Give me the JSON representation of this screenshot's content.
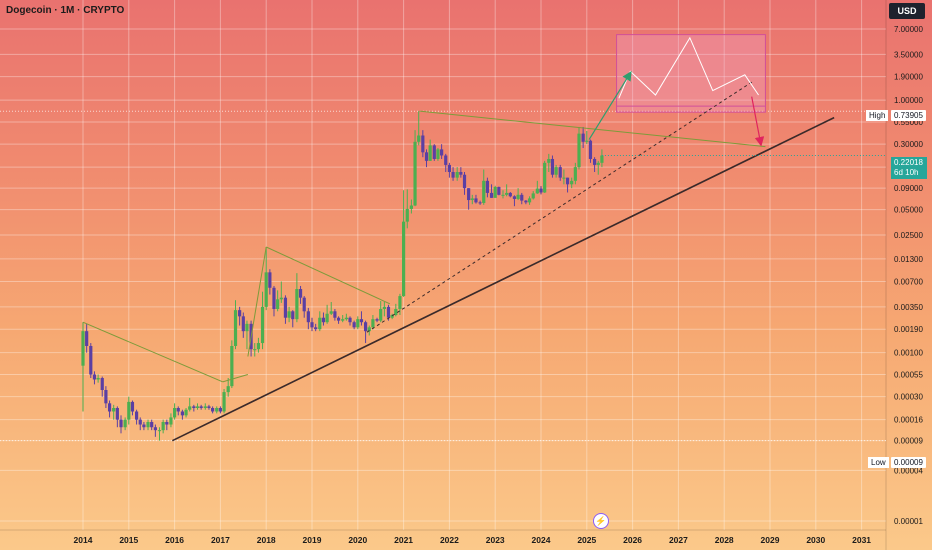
{
  "header": {
    "title": "Dogecoin · 1M · CRYPTO",
    "currency": "USD"
  },
  "price_tags": {
    "high_label": "High",
    "high_value": "0.73905",
    "low_label": "Low",
    "low_value": "0.00009",
    "current_value": "0.22018",
    "countdown": "6d 10h"
  },
  "colors": {
    "up": "#4caf50",
    "down": "#5b3fa3",
    "trendline": "#3b2a2a",
    "triangle": "#7d9b3a",
    "forecast_box": "#d14f9a",
    "forecast_arrow": "#2e9e6e",
    "down_arrow": "#e0245e"
  },
  "chart_data": {
    "type": "candlestick",
    "scale": "log",
    "y_ticks": [
      "7.00000",
      "3.50000",
      "1.90000",
      "1.00000",
      "0.55000",
      "0.30000",
      "0.16000",
      "0.09000",
      "0.05000",
      "0.02500",
      "0.01300",
      "0.00700",
      "0.00350",
      "0.00190",
      "0.00100",
      "0.00055",
      "0.00030",
      "0.00016",
      "0.00009",
      "0.00004",
      "0.00001"
    ],
    "x_ticks": [
      "2014",
      "2015",
      "2016",
      "2017",
      "2018",
      "2019",
      "2020",
      "2021",
      "2022",
      "2023",
      "2024",
      "2025",
      "2026",
      "2027",
      "2028",
      "2029",
      "2030",
      "2031"
    ],
    "high": 0.73905,
    "low": 9e-05,
    "last": 0.22018,
    "candles": [
      [
        2014.0,
        0.0007,
        0.0018,
        0.0023,
        0.0002
      ],
      [
        2014.08,
        0.0018,
        0.0012,
        0.0022,
        0.001
      ],
      [
        2014.17,
        0.0012,
        0.00055,
        0.0013,
        0.0005
      ],
      [
        2014.25,
        0.00055,
        0.00048,
        0.0006,
        0.00042
      ],
      [
        2014.33,
        0.00048,
        0.0005,
        0.00055,
        0.00044
      ],
      [
        2014.42,
        0.0005,
        0.00036,
        0.00052,
        0.0003
      ],
      [
        2014.5,
        0.00036,
        0.00025,
        0.0004,
        0.00022
      ],
      [
        2014.58,
        0.00025,
        0.0002,
        0.00027,
        0.00017
      ],
      [
        2014.67,
        0.0002,
        0.00022,
        0.00024,
        0.00016
      ],
      [
        2014.75,
        0.00022,
        0.00016,
        0.00023,
        0.00013
      ],
      [
        2014.83,
        0.00016,
        0.00013,
        0.00018,
        0.00011
      ],
      [
        2014.92,
        0.00013,
        0.00016,
        0.00017,
        0.00012
      ],
      [
        2015.0,
        0.00016,
        0.00026,
        0.0003,
        0.00014
      ],
      [
        2015.08,
        0.00026,
        0.0002,
        0.00027,
        0.00018
      ],
      [
        2015.17,
        0.0002,
        0.00016,
        0.00021,
        0.00014
      ],
      [
        2015.25,
        0.00016,
        0.00014,
        0.00017,
        0.00012
      ],
      [
        2015.33,
        0.00014,
        0.00013,
        0.00015,
        0.00012
      ],
      [
        2015.42,
        0.00013,
        0.00015,
        0.00016,
        0.00012
      ],
      [
        2015.5,
        0.00015,
        0.00013,
        0.00016,
        0.00012
      ],
      [
        2015.58,
        0.00013,
        0.00012,
        0.00014,
        0.0001
      ],
      [
        2015.67,
        0.00012,
        0.00012,
        0.00013,
        9e-05
      ],
      [
        2015.75,
        0.00012,
        0.00015,
        0.00016,
        0.00011
      ],
      [
        2015.83,
        0.00015,
        0.00014,
        0.00016,
        0.00012
      ],
      [
        2015.92,
        0.00014,
        0.00017,
        0.00019,
        0.00013
      ],
      [
        2016.0,
        0.00017,
        0.00022,
        0.00025,
        0.00016
      ],
      [
        2016.08,
        0.00022,
        0.0002,
        0.00023,
        0.00018
      ],
      [
        2016.17,
        0.0002,
        0.00018,
        0.00021,
        0.00016
      ],
      [
        2016.25,
        0.00018,
        0.00021,
        0.00022,
        0.00017
      ],
      [
        2016.33,
        0.00021,
        0.00023,
        0.00029,
        0.0002
      ],
      [
        2016.42,
        0.00023,
        0.00022,
        0.00024,
        0.0002
      ],
      [
        2016.5,
        0.00022,
        0.00023,
        0.00025,
        0.00021
      ],
      [
        2016.58,
        0.00023,
        0.00022,
        0.00024,
        0.00021
      ],
      [
        2016.67,
        0.00022,
        0.00023,
        0.00025,
        0.00021
      ],
      [
        2016.75,
        0.00023,
        0.00022,
        0.00024,
        0.00021
      ],
      [
        2016.83,
        0.00022,
        0.0002,
        0.00023,
        0.00019
      ],
      [
        2016.92,
        0.0002,
        0.00022,
        0.00023,
        0.00019
      ],
      [
        2017.0,
        0.00022,
        0.0002,
        0.00023,
        0.00019
      ],
      [
        2017.08,
        0.0002,
        0.00034,
        0.00037,
        0.00019
      ],
      [
        2017.17,
        0.00034,
        0.0004,
        0.0005,
        0.0003
      ],
      [
        2017.25,
        0.0004,
        0.0012,
        0.0014,
        0.00038
      ],
      [
        2017.33,
        0.0012,
        0.0032,
        0.0042,
        0.0011
      ],
      [
        2017.42,
        0.0032,
        0.0027,
        0.0035,
        0.0021
      ],
      [
        2017.5,
        0.0027,
        0.0018,
        0.003,
        0.0015
      ],
      [
        2017.58,
        0.0018,
        0.0022,
        0.0024,
        0.0011
      ],
      [
        2017.67,
        0.0022,
        0.0011,
        0.0024,
        0.0009
      ],
      [
        2017.75,
        0.0011,
        0.0011,
        0.0013,
        0.0009
      ],
      [
        2017.83,
        0.0011,
        0.0013,
        0.0015,
        0.001
      ],
      [
        2017.92,
        0.0013,
        0.0035,
        0.0053,
        0.0011
      ],
      [
        2018.0,
        0.0035,
        0.009,
        0.018,
        0.0032
      ],
      [
        2018.08,
        0.009,
        0.0059,
        0.0098,
        0.0049
      ],
      [
        2018.17,
        0.0059,
        0.0033,
        0.0062,
        0.0027
      ],
      [
        2018.25,
        0.0033,
        0.0043,
        0.0055,
        0.0031
      ],
      [
        2018.33,
        0.0043,
        0.0045,
        0.007,
        0.0039
      ],
      [
        2018.42,
        0.0045,
        0.0026,
        0.0048,
        0.0022
      ],
      [
        2018.5,
        0.0026,
        0.0031,
        0.0035,
        0.0023
      ],
      [
        2018.58,
        0.0031,
        0.0025,
        0.0032,
        0.002
      ],
      [
        2018.67,
        0.0025,
        0.0057,
        0.0088,
        0.0023
      ],
      [
        2018.75,
        0.0057,
        0.0045,
        0.0062,
        0.0038
      ],
      [
        2018.83,
        0.0045,
        0.0031,
        0.0047,
        0.0026
      ],
      [
        2018.92,
        0.0031,
        0.0023,
        0.0034,
        0.0019
      ],
      [
        2019.0,
        0.0023,
        0.002,
        0.0026,
        0.0018
      ],
      [
        2019.08,
        0.002,
        0.0019,
        0.0022,
        0.0018
      ],
      [
        2019.17,
        0.0019,
        0.0026,
        0.0031,
        0.0018
      ],
      [
        2019.25,
        0.0026,
        0.0023,
        0.003,
        0.0021
      ],
      [
        2019.33,
        0.0023,
        0.0029,
        0.0037,
        0.0022
      ],
      [
        2019.42,
        0.0029,
        0.0031,
        0.004,
        0.0028
      ],
      [
        2019.5,
        0.0031,
        0.0026,
        0.0033,
        0.0024
      ],
      [
        2019.58,
        0.0026,
        0.0024,
        0.0027,
        0.0022
      ],
      [
        2019.67,
        0.0024,
        0.0025,
        0.0028,
        0.0023
      ],
      [
        2019.75,
        0.0025,
        0.0026,
        0.0029,
        0.0024
      ],
      [
        2019.83,
        0.0026,
        0.0023,
        0.0027,
        0.0021
      ],
      [
        2019.92,
        0.0023,
        0.002,
        0.0024,
        0.0019
      ],
      [
        2020.0,
        0.002,
        0.0025,
        0.0027,
        0.0019
      ],
      [
        2020.08,
        0.0025,
        0.0023,
        0.0031,
        0.0021
      ],
      [
        2020.17,
        0.0023,
        0.0018,
        0.0024,
        0.0013
      ],
      [
        2020.25,
        0.0018,
        0.002,
        0.0021,
        0.0016
      ],
      [
        2020.33,
        0.002,
        0.0025,
        0.0028,
        0.0019
      ],
      [
        2020.42,
        0.0025,
        0.0024,
        0.0026,
        0.0023
      ],
      [
        2020.5,
        0.0024,
        0.0033,
        0.0041,
        0.0023
      ],
      [
        2020.58,
        0.0033,
        0.0035,
        0.004,
        0.0027
      ],
      [
        2020.67,
        0.0035,
        0.0026,
        0.0037,
        0.0024
      ],
      [
        2020.75,
        0.0026,
        0.0028,
        0.0029,
        0.0025
      ],
      [
        2020.83,
        0.0028,
        0.0033,
        0.0038,
        0.0027
      ],
      [
        2020.92,
        0.0033,
        0.0047,
        0.005,
        0.0028
      ],
      [
        2021.0,
        0.0047,
        0.036,
        0.085,
        0.0046
      ],
      [
        2021.08,
        0.036,
        0.051,
        0.087,
        0.03
      ],
      [
        2021.17,
        0.051,
        0.056,
        0.066,
        0.045
      ],
      [
        2021.25,
        0.056,
        0.32,
        0.44,
        0.055
      ],
      [
        2021.33,
        0.32,
        0.38,
        0.74,
        0.29
      ],
      [
        2021.42,
        0.38,
        0.24,
        0.44,
        0.21
      ],
      [
        2021.5,
        0.24,
        0.19,
        0.26,
        0.16
      ],
      [
        2021.58,
        0.19,
        0.29,
        0.34,
        0.19
      ],
      [
        2021.67,
        0.29,
        0.2,
        0.3,
        0.19
      ],
      [
        2021.75,
        0.2,
        0.26,
        0.27,
        0.19
      ],
      [
        2021.83,
        0.26,
        0.22,
        0.3,
        0.2
      ],
      [
        2021.92,
        0.22,
        0.17,
        0.23,
        0.14
      ],
      [
        2022.0,
        0.17,
        0.14,
        0.18,
        0.12
      ],
      [
        2022.08,
        0.14,
        0.12,
        0.16,
        0.11
      ],
      [
        2022.17,
        0.12,
        0.14,
        0.16,
        0.11
      ],
      [
        2022.25,
        0.14,
        0.13,
        0.16,
        0.12
      ],
      [
        2022.33,
        0.13,
        0.09,
        0.14,
        0.075
      ],
      [
        2022.42,
        0.09,
        0.065,
        0.09,
        0.05
      ],
      [
        2022.5,
        0.065,
        0.068,
        0.075,
        0.058
      ],
      [
        2022.58,
        0.068,
        0.061,
        0.075,
        0.059
      ],
      [
        2022.67,
        0.061,
        0.06,
        0.064,
        0.057
      ],
      [
        2022.75,
        0.06,
        0.11,
        0.15,
        0.057
      ],
      [
        2022.83,
        0.11,
        0.079,
        0.12,
        0.07
      ],
      [
        2022.92,
        0.079,
        0.069,
        0.1,
        0.069
      ],
      [
        2023.0,
        0.069,
        0.093,
        0.096,
        0.07
      ],
      [
        2023.08,
        0.093,
        0.075,
        0.094,
        0.074
      ],
      [
        2023.17,
        0.075,
        0.075,
        0.085,
        0.068
      ],
      [
        2023.25,
        0.075,
        0.079,
        0.1,
        0.072
      ],
      [
        2023.33,
        0.079,
        0.072,
        0.081,
        0.07
      ],
      [
        2023.42,
        0.072,
        0.067,
        0.074,
        0.055
      ],
      [
        2023.5,
        0.067,
        0.075,
        0.09,
        0.065
      ],
      [
        2023.58,
        0.075,
        0.064,
        0.079,
        0.058
      ],
      [
        2023.67,
        0.064,
        0.061,
        0.065,
        0.058
      ],
      [
        2023.75,
        0.061,
        0.068,
        0.072,
        0.057
      ],
      [
        2023.83,
        0.068,
        0.078,
        0.083,
        0.066
      ],
      [
        2023.92,
        0.078,
        0.089,
        0.11,
        0.077
      ],
      [
        2024.0,
        0.089,
        0.08,
        0.095,
        0.076
      ],
      [
        2024.08,
        0.08,
        0.18,
        0.19,
        0.079
      ],
      [
        2024.17,
        0.18,
        0.2,
        0.23,
        0.14
      ],
      [
        2024.25,
        0.2,
        0.13,
        0.22,
        0.12
      ],
      [
        2024.33,
        0.13,
        0.16,
        0.17,
        0.12
      ],
      [
        2024.42,
        0.16,
        0.12,
        0.17,
        0.11
      ],
      [
        2024.5,
        0.12,
        0.12,
        0.15,
        0.1
      ],
      [
        2024.58,
        0.12,
        0.1,
        0.12,
        0.08
      ],
      [
        2024.67,
        0.1,
        0.11,
        0.12,
        0.09
      ],
      [
        2024.75,
        0.11,
        0.16,
        0.18,
        0.1
      ],
      [
        2024.83,
        0.16,
        0.4,
        0.48,
        0.15
      ],
      [
        2024.92,
        0.4,
        0.32,
        0.48,
        0.27
      ],
      [
        2025.0,
        0.32,
        0.33,
        0.43,
        0.3
      ],
      [
        2025.08,
        0.33,
        0.2,
        0.34,
        0.18
      ],
      [
        2025.17,
        0.2,
        0.17,
        0.21,
        0.14
      ],
      [
        2025.25,
        0.17,
        0.18,
        0.19,
        0.13
      ],
      [
        2025.33,
        0.18,
        0.22,
        0.26,
        0.16
      ]
    ],
    "annotations": {
      "main_support": [
        [
          2015.95,
          9e-05
        ],
        [
          2030.4,
          0.62
        ]
      ],
      "dashed_trend": [
        [
          2020.2,
          0.00175
        ],
        [
          2028.65,
          1.7
        ]
      ],
      "triangle_2014": [
        [
          [
            2014.0,
            0.0023
          ],
          [
            2017.05,
            0.00045
          ]
        ],
        [
          [
            2017.6,
            0.00055
          ],
          [
            2017.05,
            0.00045
          ]
        ]
      ],
      "triangle_2018": [
        [
          [
            2018.0,
            0.018
          ],
          [
            2020.7,
            0.0038
          ]
        ],
        [
          [
            2017.6,
            0.0009
          ],
          [
            2018.0,
            0.018
          ]
        ]
      ],
      "triangle_2021": [
        [
          [
            2021.35,
            0.74
          ],
          [
            2028.9,
            0.28
          ]
        ]
      ],
      "forecast_box": {
        "x": [
          2025.65,
          2028.9
        ],
        "y": [
          0.72,
          6.0
        ]
      },
      "forecast_path": [
        [
          2025.7,
          1.05
        ],
        [
          2025.95,
          2.2
        ],
        [
          2026.5,
          1.15
        ],
        [
          2027.25,
          5.5
        ],
        [
          2027.75,
          1.3
        ],
        [
          2028.45,
          2.0
        ],
        [
          2028.75,
          1.15
        ]
      ],
      "forecast_up_arrow": [
        [
          2025.05,
          0.34
        ],
        [
          2025.95,
          2.1
        ]
      ],
      "down_arrow": [
        [
          2028.6,
          1.1
        ],
        [
          2028.8,
          0.3
        ]
      ]
    }
  }
}
